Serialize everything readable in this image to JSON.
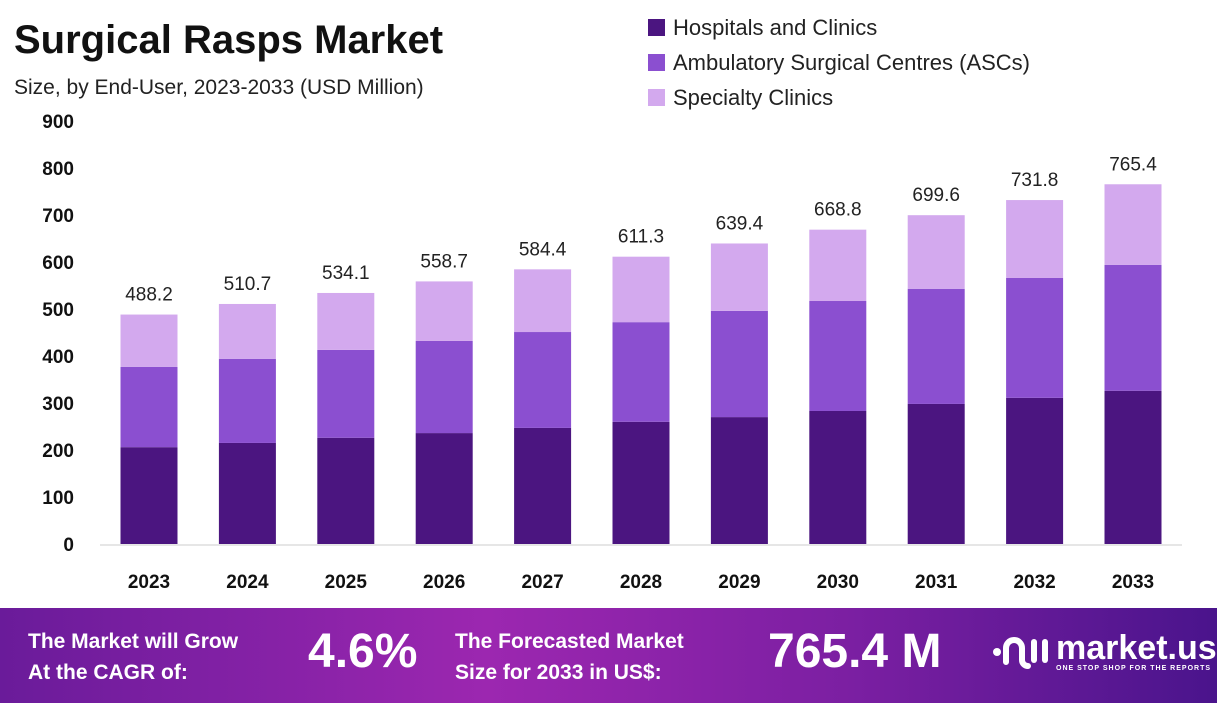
{
  "chart_data": {
    "type": "bar",
    "stacked": true,
    "title": "Surgical Rasps Market",
    "subtitle": "Size, by End-User, 2023-2033 (USD Million)",
    "categories": [
      "2023",
      "2024",
      "2025",
      "2026",
      "2027",
      "2028",
      "2029",
      "2030",
      "2031",
      "2032",
      "2033"
    ],
    "series": [
      {
        "name": "Hospitals and Clinics",
        "color": "#4b1580",
        "values": [
          206,
          215,
          226,
          236,
          247,
          260,
          270,
          283,
          298,
          311,
          326
        ]
      },
      {
        "name": "Ambulatory Surgical Centres (ASCs)",
        "color": "#8b4fd0",
        "values": [
          171,
          179,
          187,
          196,
          204,
          212,
          226,
          234,
          245,
          255,
          268
        ]
      },
      {
        "name": "Specialty Clinics",
        "color": "#d3a9ee",
        "values": [
          111.2,
          116.7,
          121.1,
          126.7,
          133.4,
          139.3,
          143.4,
          151.8,
          156.6,
          165.8,
          171.4
        ]
      }
    ],
    "totals": [
      "488.2",
      "510.7",
      "534.1",
      "558.7",
      "584.4",
      "611.3",
      "639.4",
      "668.8",
      "699.6",
      "731.8",
      "765.4"
    ],
    "ylim": [
      0,
      900
    ],
    "yticks": [
      "0",
      "100",
      "200",
      "300",
      "400",
      "500",
      "600",
      "700",
      "800",
      "900"
    ],
    "grid": false,
    "legend_position": "top-right"
  },
  "footer": {
    "cagr_label_1": "The Market will Grow",
    "cagr_label_2": "At the CAGR of:",
    "cagr_value": "4.6%",
    "forecast_label_1": "The Forecasted Market",
    "forecast_label_2": "Size for 2033 in US$:",
    "forecast_value": "765.4 M",
    "logo_name": "market.us",
    "logo_tagline": "ONE STOP SHOP FOR THE REPORTS"
  }
}
